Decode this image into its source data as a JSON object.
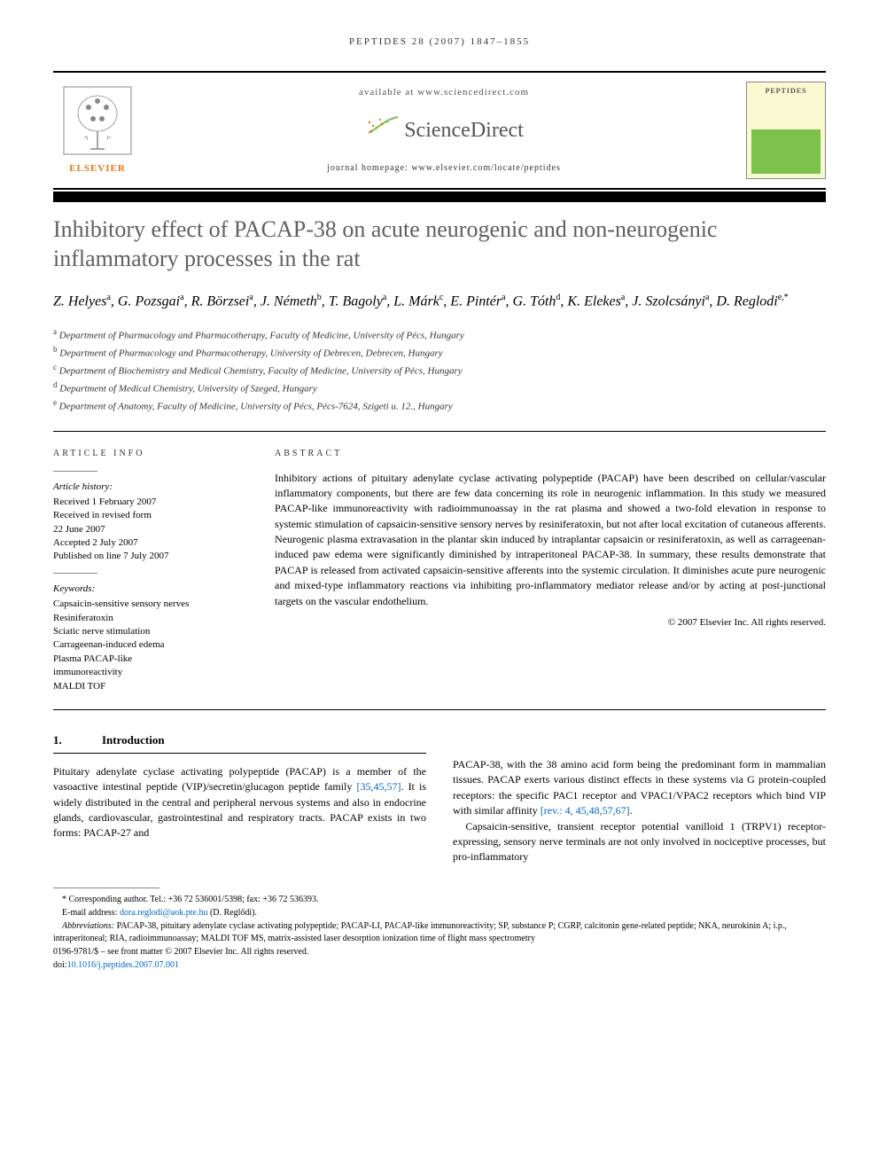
{
  "running_head": "PEPTIDES 28 (2007) 1847–1855",
  "header": {
    "available_at": "available at www.sciencedirect.com",
    "sciencedirect": "ScienceDirect",
    "journal_homepage_label": "journal homepage: www.elsevier.com/locate/peptides",
    "elsevier_label": "ELSEVIER",
    "cover_title": "PEPTIDES"
  },
  "title": "Inhibitory effect of PACAP-38 on acute neurogenic and non-neurogenic inflammatory processes in the rat",
  "authors_html": "Z. Helyes<span class='sup'>a</span>, G. Pozsgai<span class='sup'>a</span>, R. Börzsei<span class='sup'>a</span>, J. Németh<span class='sup'>b</span>, T. Bagoly<span class='sup'>a</span>, L. Márk<span class='sup'>c</span>, E. Pintér<span class='sup'>a</span>, G. Tóth<span class='sup'>d</span>, K. Elekes<span class='sup'>a</span>, J. Szolcsányi<span class='sup'>a</span>, D. Reglodi<span class='sup'>e,*</span>",
  "affiliations": [
    {
      "sup": "a",
      "text": "Department of Pharmacology and Pharmacotherapy, Faculty of Medicine, University of Pécs, Hungary"
    },
    {
      "sup": "b",
      "text": "Department of Pharmacology and Pharmacotherapy, University of Debrecen, Debrecen, Hungary"
    },
    {
      "sup": "c",
      "text": "Department of Biochemistry and Medical Chemistry, Faculty of Medicine, University of Pécs, Hungary"
    },
    {
      "sup": "d",
      "text": "Department of Medical Chemistry, University of Szeged, Hungary"
    },
    {
      "sup": "e",
      "text": "Department of Anatomy, Faculty of Medicine, University of Pécs, Pécs-7624, Szigeti u. 12., Hungary"
    }
  ],
  "article_info": {
    "heading": "ARTICLE INFO",
    "history_label": "Article history:",
    "history": [
      "Received 1 February 2007",
      "Received in revised form",
      "22 June 2007",
      "Accepted 2 July 2007",
      "Published on line 7 July 2007"
    ],
    "keywords_label": "Keywords:",
    "keywords": [
      "Capsaicin-sensitive sensory nerves",
      "Resiniferatoxin",
      "Sciatic nerve stimulation",
      "Carrageenan-induced edema",
      "Plasma PACAP-like",
      "immunoreactivity",
      "MALDI TOF"
    ]
  },
  "abstract": {
    "heading": "ABSTRACT",
    "text": "Inhibitory actions of pituitary adenylate cyclase activating polypeptide (PACAP) have been described on cellular/vascular inflammatory components, but there are few data concerning its role in neurogenic inflammation. In this study we measured PACAP-like immunoreactivity with radioimmunoassay in the rat plasma and showed a two-fold elevation in response to systemic stimulation of capsaicin-sensitive sensory nerves by resiniferatoxin, but not after local excitation of cutaneous afferents. Neurogenic plasma extravasation in the plantar skin induced by intraplantar capsaicin or resiniferatoxin, as well as carrageenan-induced paw edema were significantly diminished by intraperitoneal PACAP-38. In summary, these results demonstrate that PACAP is released from activated capsaicin-sensitive afferents into the systemic circulation. It diminishes acute pure neurogenic and mixed-type inflammatory reactions via inhibiting pro-inflammatory mediator release and/or by acting at post-junctional targets on the vascular endothelium.",
    "copyright": "© 2007 Elsevier Inc. All rights reserved."
  },
  "sections": {
    "intro": {
      "num": "1.",
      "title": "Introduction",
      "col1_p1_a": "Pituitary adenylate cyclase activating polypeptide (PACAP) is a member of the vasoactive intestinal peptide (VIP)/secretin/glucagon peptide family ",
      "col1_cite1": "[35,45,57]",
      "col1_p1_b": ". It is widely distributed in the central and peripheral nervous systems and also in endocrine glands, cardiovascular, gastrointestinal and respiratory tracts. PACAP exists in two forms: PACAP-27 and",
      "col2_p1_a": "PACAP-38, with the 38 amino acid form being the predominant form in mammalian tissues. PACAP exerts various distinct effects in these systems via G protein-coupled receptors: the specific PAC1 receptor and VPAC1/VPAC2 receptors which bind VIP with similar affinity ",
      "col2_cite1": "[rev.: 4, 45,48,57,67]",
      "col2_p1_b": ".",
      "col2_p2": "Capsaicin-sensitive, transient receptor potential vanilloid 1 (TRPV1) receptor-expressing, sensory nerve terminals are not only involved in nociceptive processes, but pro-inflammatory"
    }
  },
  "footnotes": {
    "corresponding": "* Corresponding author. Tel.: +36 72 536001/5398; fax: +36 72 536393.",
    "email_label": "E-mail address: ",
    "email": "dora.reglodi@aok.pte.hu",
    "email_suffix": " (D. Reglődi).",
    "abbrev_label": "Abbreviations: ",
    "abbrev_text": "PACAP-38, pituitary adenylate cyclase activating polypeptide; PACAP-LI, PACAP-like immunoreactivity; SP, substance P; CGRP, calcitonin gene-related peptide; NKA, neurokinin A; i.p., intraperitoneal; RIA, radioimmunoassay; MALDI TOF MS, matrix-assisted laser desorption ionization time of flight mass spectrometry",
    "front_matter": "0196-9781/$ – see front matter © 2007 Elsevier Inc. All rights reserved.",
    "doi_label": "doi:",
    "doi": "10.1016/j.peptides.2007.07.001"
  },
  "colors": {
    "title_gray": "#606060",
    "link_blue": "#0066cc",
    "elsevier_orange": "#e67817",
    "sd_green": "#7cc24a"
  }
}
